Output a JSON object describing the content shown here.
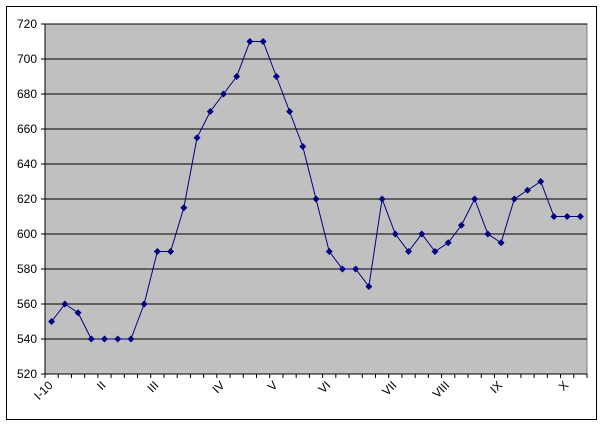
{
  "chart_data": {
    "type": "line",
    "title": "",
    "xlabel": "",
    "ylabel": "",
    "ylim": [
      520,
      720
    ],
    "y_ticks": [
      520,
      540,
      560,
      580,
      600,
      620,
      640,
      660,
      680,
      700,
      720
    ],
    "grid": "horizontal major gridlines",
    "legend": "none",
    "plot_background": "#C0C0C0",
    "line_color": "#000080",
    "marker": "diamond",
    "x_tick_labels": [
      {
        "index": 0,
        "label": "I-10"
      },
      {
        "index": 4,
        "label": "II"
      },
      {
        "index": 8,
        "label": "III"
      },
      {
        "index": 13,
        "label": "IV"
      },
      {
        "index": 17,
        "label": "V"
      },
      {
        "index": 21,
        "label": "VI"
      },
      {
        "index": 26,
        "label": "VII"
      },
      {
        "index": 30,
        "label": "VIII"
      },
      {
        "index": 34,
        "label": "IX"
      },
      {
        "index": 39,
        "label": "X"
      }
    ],
    "series": [
      {
        "values": [
          550,
          560,
          555,
          540,
          540,
          540,
          540,
          560,
          590,
          590,
          615,
          655,
          670,
          680,
          690,
          710,
          710,
          690,
          670,
          650,
          620,
          590,
          580,
          580,
          570,
          620,
          600,
          590,
          600,
          590,
          595,
          605,
          620,
          600,
          595,
          620,
          625,
          630,
          610,
          610,
          610
        ]
      }
    ]
  }
}
